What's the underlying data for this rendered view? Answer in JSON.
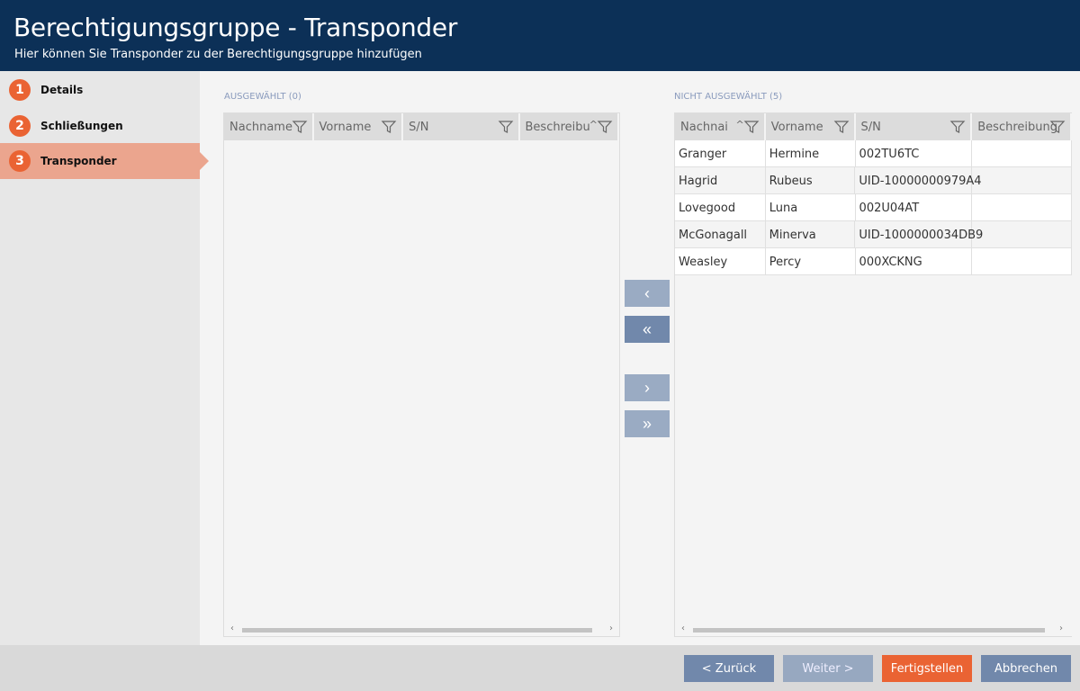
{
  "header": {
    "title": "Berechtigungsgruppe - Transponder",
    "subtitle": "Hier können Sie Transponder zu der Berechtigungsgruppe hinzufügen"
  },
  "steps": [
    {
      "num": "1",
      "label": "Details"
    },
    {
      "num": "2",
      "label": "Schließungen"
    },
    {
      "num": "3",
      "label": "Transponder",
      "active": true
    }
  ],
  "selected": {
    "label": "AUSGEWÄHLT (0)",
    "columns": [
      "Nachname",
      "Vorname",
      "S/N",
      "Beschreibu"
    ],
    "sort_column": "Beschreibung",
    "rows": []
  },
  "unselected": {
    "label": "NICHT AUSGEWÄHLT (5)",
    "columns": [
      "Nachnai",
      "Vorname",
      "S/N",
      "Beschreibung"
    ],
    "sort_column": "Nachname",
    "rows": [
      [
        "Granger",
        "Hermine",
        "002TU6TC",
        ""
      ],
      [
        "Hagrid",
        "Rubeus",
        "UID-10000000979A4",
        ""
      ],
      [
        "Lovegood",
        "Luna",
        "002U04AT",
        ""
      ],
      [
        "McGonagall",
        "Minerva",
        "UID-1000000034DB9",
        ""
      ],
      [
        "Weasley",
        "Percy",
        "000XCKNG",
        ""
      ]
    ]
  },
  "transfer": {
    "add_one": "‹",
    "add_all": "«",
    "remove_one": "›",
    "remove_all": "»"
  },
  "footer": {
    "back": "< Zurück",
    "next": "Weiter >",
    "finish": "Fertigstellen",
    "cancel": "Abbrechen"
  },
  "colors": {
    "header": "#0c3057",
    "accent": "#ea6333",
    "active_step": "#eba58e",
    "button": "#7188ab",
    "button_disabled": "#9aabc3"
  }
}
